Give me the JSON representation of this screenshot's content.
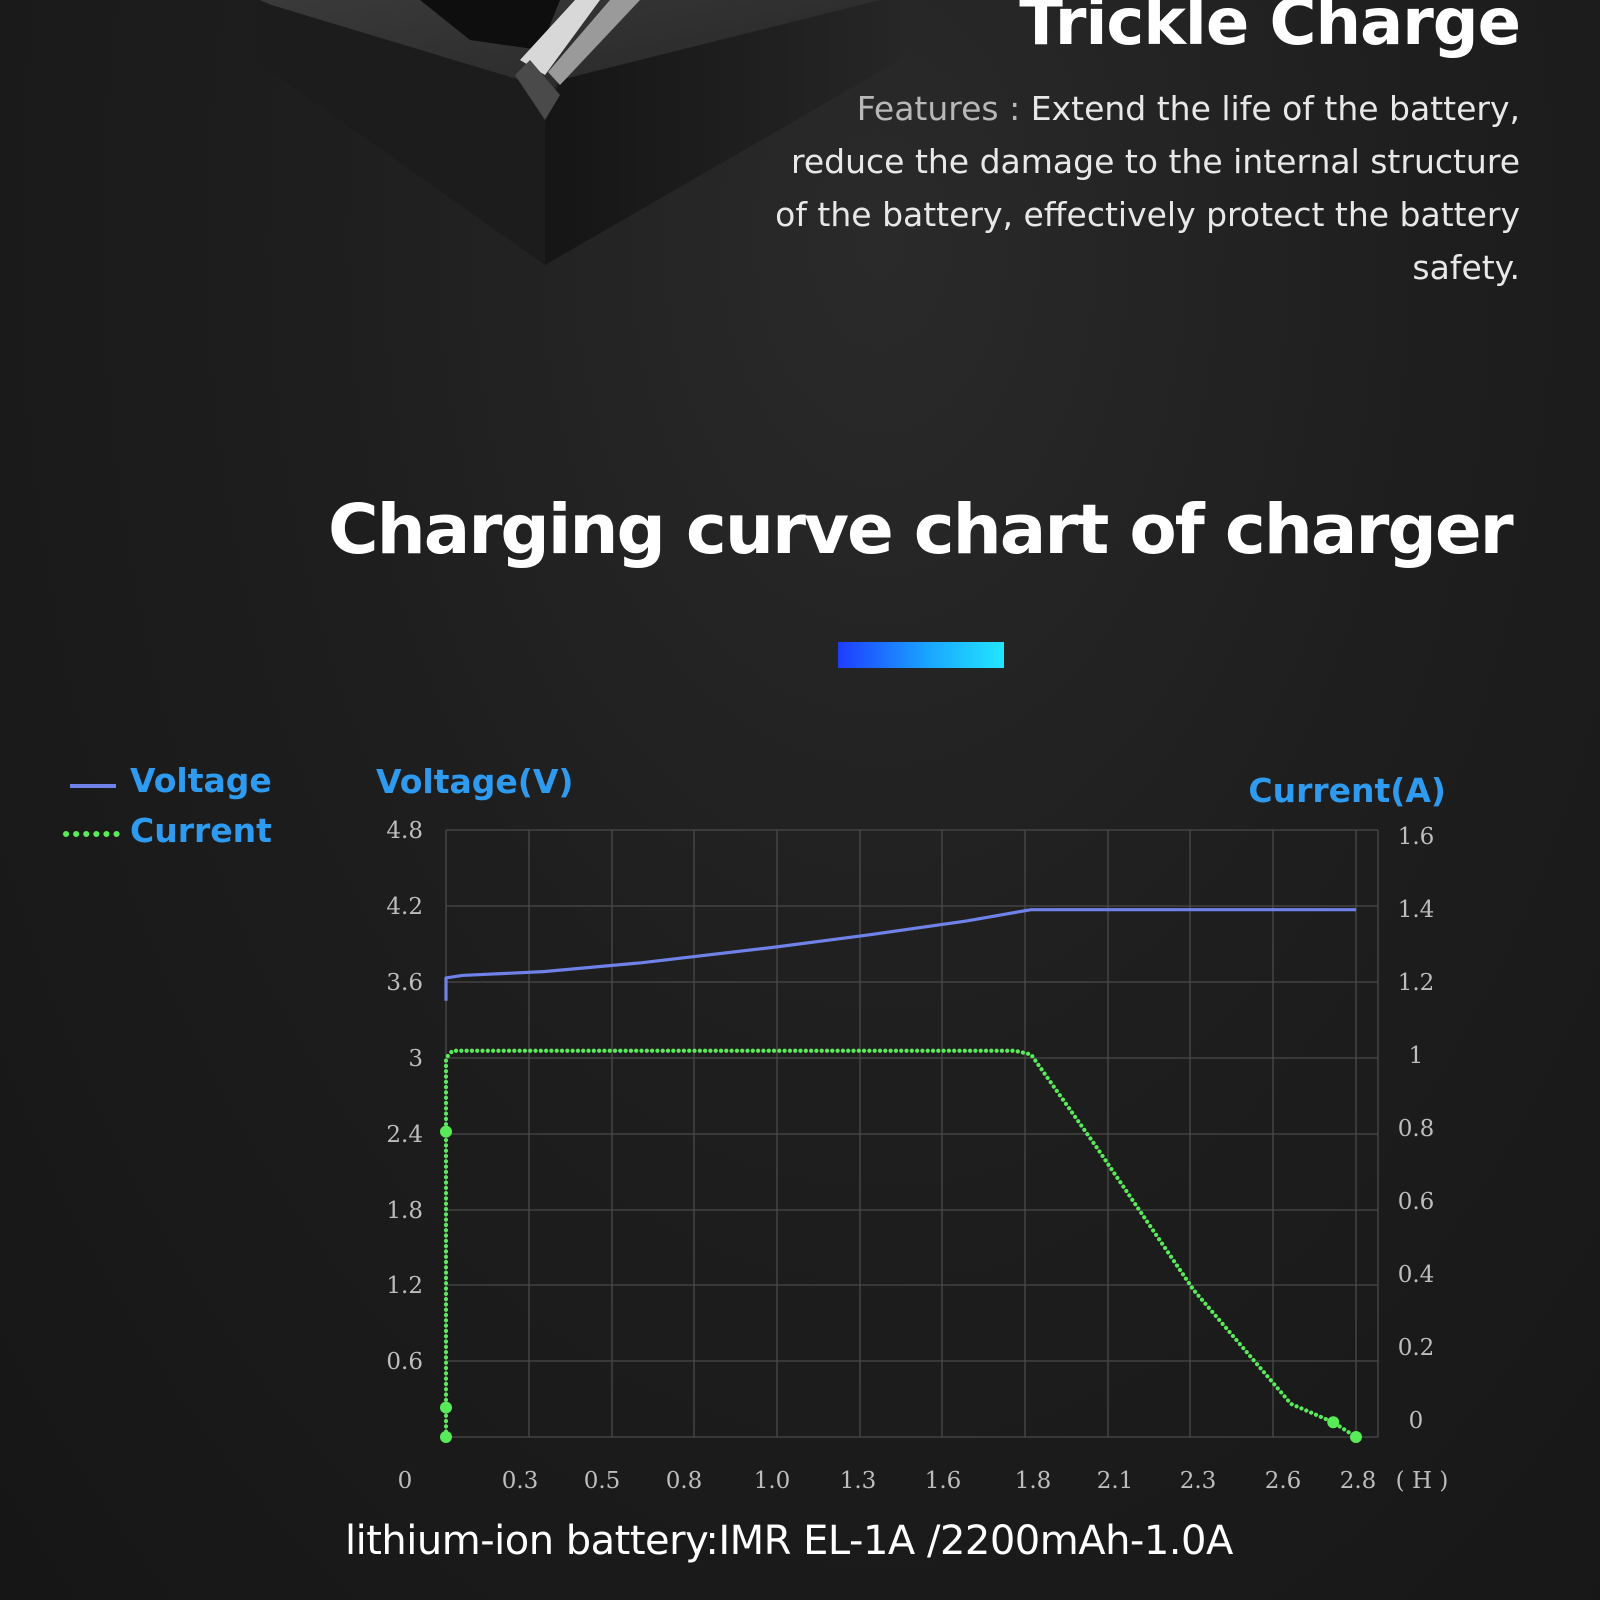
{
  "header": {
    "title": "Trickle Charge",
    "features_label": "Features :",
    "features_text": "Extend the life of the battery, reduce the damage to the internal structure of the battery, effectively protect the battery safety."
  },
  "chart_title": "Charging curve chart of charger",
  "caption": "lithium-ion battery:IMR EL-1A /2200mAh-1.0A",
  "colors": {
    "voltage": "#6f82ea",
    "current": "#59ea59",
    "axis_title": "#2e9bf0",
    "grid": "#4a4a4a",
    "tick": "#bdbdbd"
  },
  "chart_data": {
    "type": "line",
    "legend_position": "left",
    "grid": true,
    "xlabel": "( H )",
    "ylabel_left": "Voltage(V)",
    "ylabel_right": "Current(A)",
    "x_ticks": [
      "0",
      "0.3",
      "0.5",
      "0.8",
      "1.0",
      "1.3",
      "1.6",
      "1.8",
      "2.1",
      "2.3",
      "2.6",
      "2.8"
    ],
    "y_left_ticks": [
      "0.6",
      "1.2",
      "1.8",
      "2.4",
      "3",
      "3.6",
      "4.2",
      "4.8"
    ],
    "y_right_ticks": [
      "0",
      "0.2",
      "0.4",
      "0.6",
      "0.8",
      "1",
      "1.2",
      "1.4",
      "1.6"
    ],
    "y_left_range": [
      0,
      4.8
    ],
    "y_right_range": [
      -0.05,
      1.6
    ],
    "x_range": [
      0,
      2.8
    ],
    "series": [
      {
        "name": "Voltage",
        "axis": "left",
        "style": "solid",
        "points": [
          [
            0,
            3.45
          ],
          [
            0,
            3.63
          ],
          [
            0.05,
            3.65
          ],
          [
            0.3,
            3.68
          ],
          [
            0.6,
            3.75
          ],
          [
            1.0,
            3.87
          ],
          [
            1.3,
            3.97
          ],
          [
            1.6,
            4.08
          ],
          [
            1.8,
            4.17
          ],
          [
            2.1,
            4.17
          ],
          [
            2.6,
            4.17
          ],
          [
            2.8,
            4.17
          ]
        ]
      },
      {
        "name": "Current",
        "axis": "right",
        "style": "dotted",
        "points": [
          [
            0,
            -0.05
          ],
          [
            0,
            0.98
          ],
          [
            0.02,
            1.0
          ],
          [
            1.75,
            1.0
          ],
          [
            1.8,
            0.99
          ],
          [
            2.0,
            0.74
          ],
          [
            2.3,
            0.35
          ],
          [
            2.6,
            0.04
          ],
          [
            2.73,
            -0.01
          ],
          [
            2.8,
            -0.05
          ]
        ],
        "markers": [
          [
            0,
            0.78
          ],
          [
            0,
            0.03
          ],
          [
            0,
            -0.05
          ],
          [
            2.73,
            -0.01
          ],
          [
            2.8,
            -0.05
          ]
        ]
      }
    ]
  }
}
